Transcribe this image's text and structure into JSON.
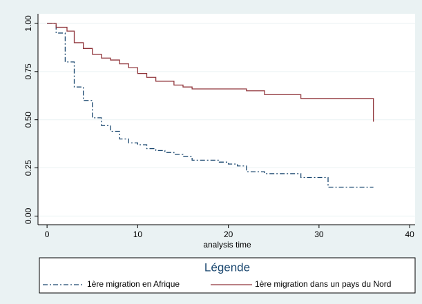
{
  "chart_data": {
    "type": "line",
    "step": true,
    "xlabel": "analysis time",
    "legend_title": "Légende",
    "xlim": [
      -1,
      40.6
    ],
    "ylim": [
      -0.045,
      1.05
    ],
    "xticks": [
      0,
      10,
      20,
      30,
      40
    ],
    "yticks": [
      {
        "value": 0,
        "label": "0.00"
      },
      {
        "value": 0.25,
        "label": "0.25"
      },
      {
        "value": 0.5,
        "label": "0.50"
      },
      {
        "value": 0.75,
        "label": "0.75"
      },
      {
        "value": 1,
        "label": "1.00"
      }
    ],
    "grid": true,
    "series": [
      {
        "name": "1ère migration en Afrique",
        "color": "#1a476f",
        "dash": "7 3 2 3",
        "x": [
          0,
          1,
          2,
          3,
          4,
          5,
          6,
          7,
          8,
          9,
          10,
          11,
          12,
          13,
          14,
          15,
          16,
          19,
          20,
          21,
          22,
          24,
          28,
          31,
          36
        ],
        "values": [
          1.0,
          0.95,
          0.8,
          0.67,
          0.6,
          0.51,
          0.47,
          0.44,
          0.4,
          0.38,
          0.37,
          0.35,
          0.34,
          0.33,
          0.32,
          0.31,
          0.29,
          0.28,
          0.27,
          0.26,
          0.23,
          0.22,
          0.2,
          0.15,
          0.15
        ]
      },
      {
        "name": "1ère migration dans un pays du Nord",
        "color": "#90353b",
        "dash": "none",
        "x": [
          0,
          1,
          2.2,
          3,
          4,
          5,
          6,
          7,
          8,
          9,
          10,
          11,
          12,
          14,
          15,
          16,
          22,
          24,
          28,
          36
        ],
        "values": [
          1.0,
          0.98,
          0.96,
          0.9,
          0.87,
          0.84,
          0.82,
          0.81,
          0.79,
          0.77,
          0.74,
          0.72,
          0.7,
          0.68,
          0.67,
          0.66,
          0.65,
          0.63,
          0.61,
          0.49
        ]
      }
    ]
  }
}
